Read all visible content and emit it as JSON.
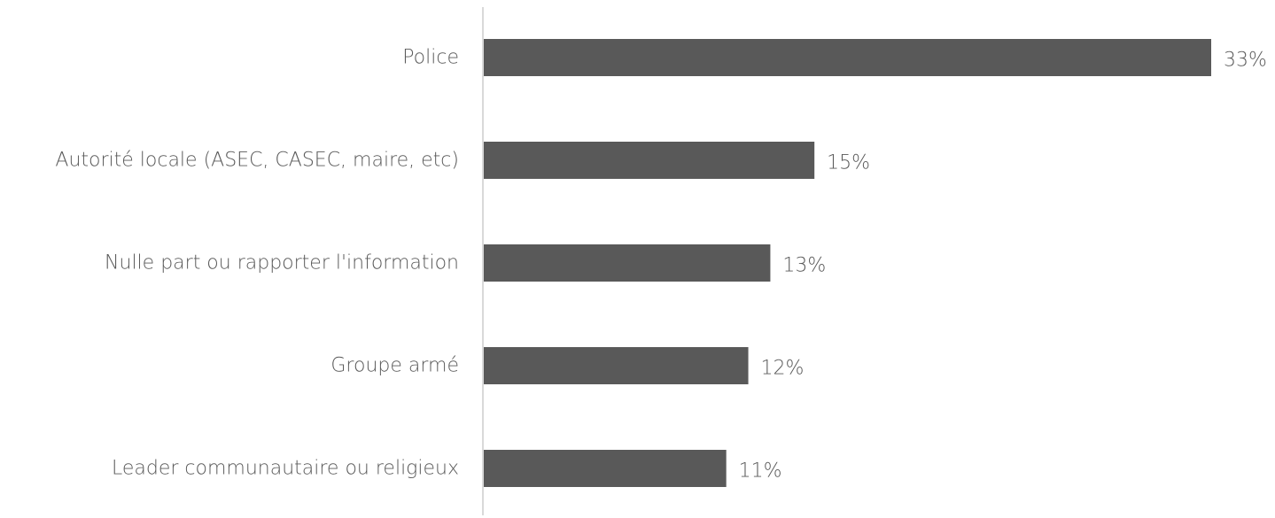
{
  "chart_data": {
    "type": "bar",
    "orientation": "horizontal",
    "categories": [
      "Police",
      "Autorité locale (ASEC, CASEC, maire, etc)",
      "Nulle part ou rapporter l'information",
      "Groupe armé",
      "Leader communautaire ou religieux"
    ],
    "values": [
      33,
      15,
      13,
      12,
      11
    ],
    "value_labels": [
      "33%",
      "15%",
      "13%",
      "12%",
      "11%"
    ],
    "title": "",
    "xlabel": "",
    "ylabel": "",
    "xlim": [
      0,
      35
    ],
    "grid": false,
    "legend": "none",
    "bar_color": "#595959",
    "axis_color": "#d9d9d9",
    "text_color": "#595959"
  }
}
